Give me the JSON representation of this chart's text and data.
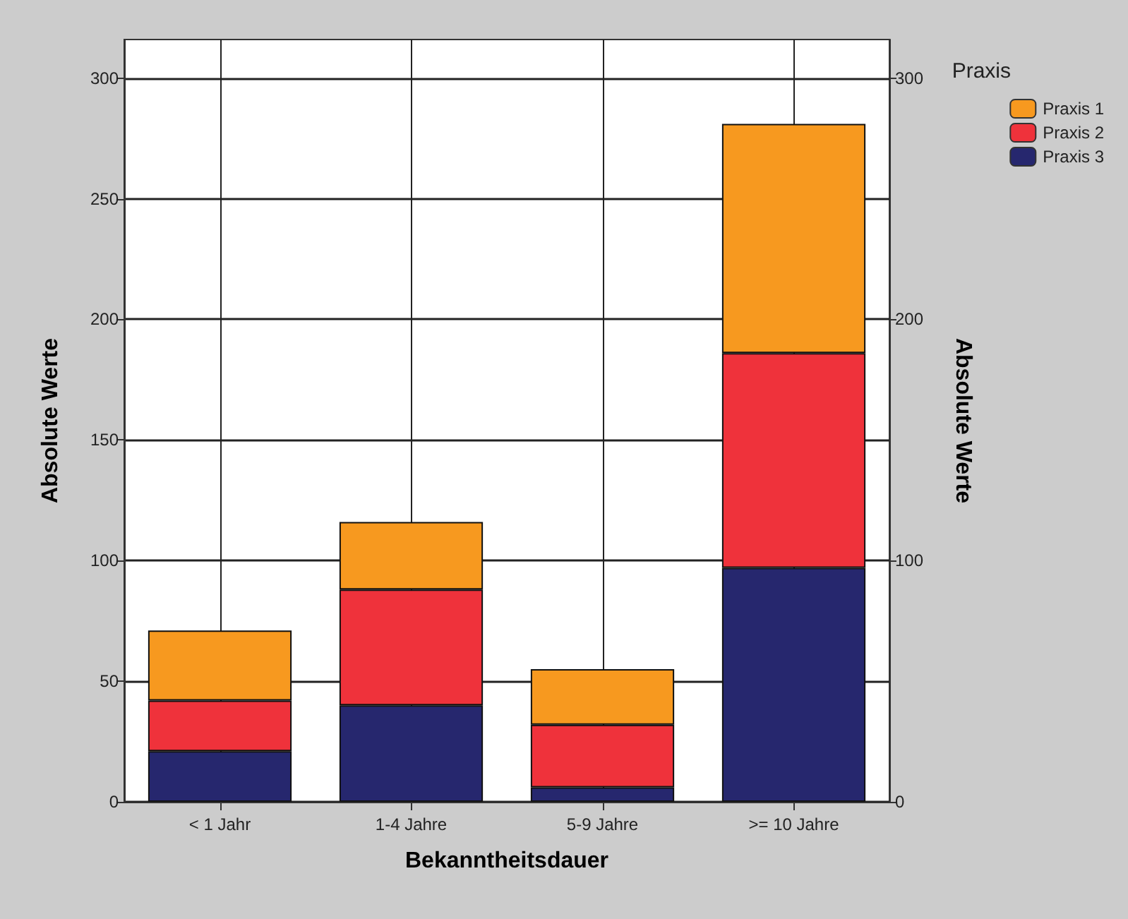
{
  "chart_data": {
    "type": "bar",
    "stacked": true,
    "xlabel": "Bekanntheitsdauer",
    "ylabel": "Absolute Werte",
    "y2label": "Absolute Werte",
    "legend_title": "Praxis",
    "categories": [
      "< 1 Jahr",
      "1-4 Jahre",
      "5-9 Jahre",
      ">= 10 Jahre"
    ],
    "series": [
      {
        "name": "Praxis 3",
        "color": "#26276e",
        "values": [
          21,
          40,
          6,
          97
        ]
      },
      {
        "name": "Praxis 2",
        "color": "#ef323b",
        "values": [
          21,
          48,
          26,
          89
        ]
      },
      {
        "name": "Praxis 1",
        "color": "#f7991f",
        "values": [
          29,
          28,
          23,
          95
        ]
      }
    ],
    "ylim": [
      0,
      316
    ],
    "yticks": [
      0,
      50,
      100,
      150,
      200,
      250,
      300
    ],
    "y2lim": [
      0,
      316
    ],
    "y2ticks": [
      0,
      100,
      200,
      300
    ],
    "grid": true,
    "legend": "top right"
  }
}
